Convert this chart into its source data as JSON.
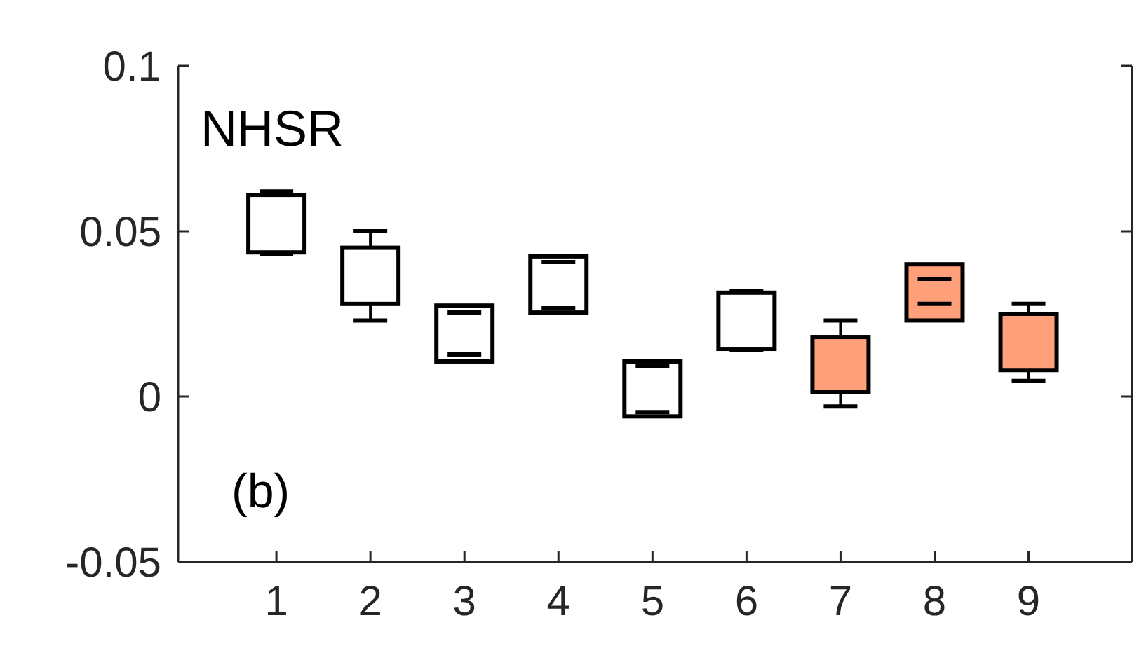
{
  "chart_data": {
    "type": "box",
    "title": "NHSR",
    "annotations": [
      "(b)"
    ],
    "categories": [
      "1",
      "2",
      "3",
      "4",
      "5",
      "6",
      "7",
      "8",
      "9"
    ],
    "ylim": [
      -0.05,
      0.1
    ],
    "yticks": [
      -0.05,
      0,
      0.05,
      0.1
    ],
    "colors": [
      "#ffffff",
      "#ffffff",
      "#ffffff",
      "#ffffff",
      "#ffffff",
      "#ffffff",
      "#ffa07a",
      "#ffa07a",
      "#ffa07a"
    ],
    "boxes": [
      {
        "low": 0.043,
        "q1": 0.0436,
        "q3": 0.061,
        "high": 0.062
      },
      {
        "low": 0.023,
        "q1": 0.028,
        "q3": 0.045,
        "high": 0.05
      },
      {
        "low": 0.0127,
        "q1": 0.0106,
        "q3": 0.0275,
        "high": 0.0254
      },
      {
        "low": 0.0267,
        "q1": 0.0254,
        "q3": 0.0424,
        "high": 0.0407
      },
      {
        "low": -0.0047,
        "q1": -0.006,
        "q3": 0.0106,
        "high": 0.0093
      },
      {
        "low": 0.014,
        "q1": 0.0144,
        "q3": 0.0314,
        "high": 0.0318
      },
      {
        "low": -0.003,
        "q1": 0.0013,
        "q3": 0.018,
        "high": 0.023
      },
      {
        "low": 0.028,
        "q1": 0.023,
        "q3": 0.04,
        "high": 0.0356
      },
      {
        "low": 0.0047,
        "q1": 0.008,
        "q3": 0.025,
        "high": 0.028
      }
    ]
  }
}
